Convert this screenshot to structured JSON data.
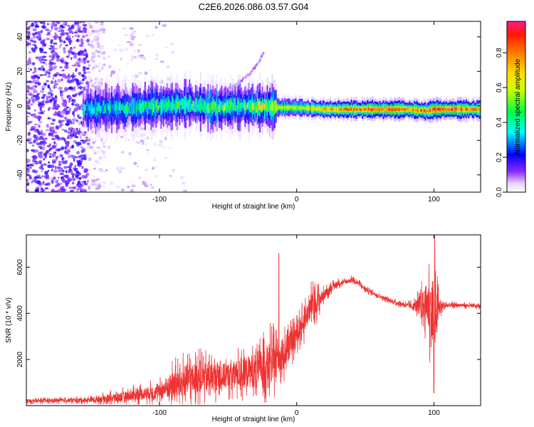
{
  "chart_data": [
    {
      "type": "heatmap",
      "title": "C2E6.2026.086.03.57.G04",
      "xlabel": "Height of straight line (km)",
      "ylabel": "Frequency (Hz)",
      "xlim": [
        -197,
        134
      ],
      "ylim": [
        -50,
        49
      ],
      "xticks": [
        -100,
        0,
        100
      ],
      "yticks": [
        -40,
        -20,
        0,
        20,
        40
      ],
      "colorbar": {
        "label": "Normalized spectral amplitude",
        "range": [
          0.0,
          0.98
        ],
        "ticks": [
          "0.0",
          "0.2",
          "0.4",
          "0.6",
          "0.8"
        ],
        "colors": [
          "#ffffff",
          "#6a00ff",
          "#0000ff",
          "#00ffff",
          "#00ff00",
          "#ffff00",
          "#ff8000",
          "#ff0000",
          "#ff0080"
        ]
      },
      "ridge": {
        "description_points_x_km": [
          -155,
          -120,
          -100,
          -80,
          -60,
          -40,
          -20,
          0,
          20,
          40,
          60,
          80,
          95,
          100,
          120,
          134
        ],
        "center_freq_hz": [
          -2,
          -1,
          0,
          1,
          -1,
          0,
          -1,
          -1,
          -2,
          -2,
          -2,
          -2,
          -3,
          -2,
          -2,
          -2
        ],
        "peak_amplitude": [
          0.35,
          0.4,
          0.45,
          0.45,
          0.45,
          0.45,
          0.6,
          0.6,
          0.75,
          0.8,
          0.85,
          0.85,
          0.8,
          0.9,
          0.85,
          0.75
        ]
      },
      "harmonic_branch": {
        "x_km": [
          -60,
          -45,
          -35,
          -28,
          -24
        ],
        "freq_hz": [
          6,
          12,
          18,
          25,
          31
        ]
      }
    },
    {
      "type": "line",
      "title": "",
      "xlabel": "Height of straight line (km)",
      "ylabel": "SNR (10 * v/v)",
      "xlim": [
        -197,
        134
      ],
      "ylim": [
        0,
        7400
      ],
      "xticks": [
        -100,
        0,
        100
      ],
      "yticks": [
        2000,
        4000,
        6000
      ],
      "color": "#ee3333",
      "envelope": {
        "x": [
          -197,
          -170,
          -150,
          -130,
          -115,
          -100,
          -90,
          -80,
          -70,
          -60,
          -50,
          -40,
          -30,
          -20,
          -10,
          -5,
          0,
          5,
          10,
          15,
          20,
          25,
          30,
          35,
          40,
          45,
          50,
          60,
          70,
          80,
          85,
          90,
          95,
          98,
          100,
          102,
          105,
          110,
          120,
          134
        ],
        "mean": [
          200,
          220,
          250,
          350,
          500,
          600,
          900,
          1100,
          1200,
          1250,
          1300,
          1400,
          1550,
          1800,
          2200,
          2600,
          3100,
          3600,
          4300,
          4500,
          4800,
          5100,
          5300,
          5350,
          5450,
          5300,
          5050,
          4750,
          4500,
          4350,
          4300,
          4350,
          4400,
          4000,
          3500,
          4100,
          4300,
          4350,
          4350,
          4300
        ],
        "spread": [
          150,
          150,
          200,
          400,
          500,
          600,
          1200,
          1400,
          1300,
          1200,
          1100,
          1300,
          1500,
          1800,
          1400,
          1100,
          900,
          1000,
          1200,
          900,
          400,
          300,
          250,
          200,
          200,
          200,
          200,
          150,
          150,
          200,
          300,
          900,
          1800,
          3000,
          2500,
          1800,
          500,
          200,
          150,
          150
        ]
      },
      "notable_spikes": [
        {
          "x": -13,
          "y": 6600
        },
        {
          "x": 100.5,
          "y": 7400
        },
        {
          "x": 100,
          "y": 550
        }
      ]
    }
  ]
}
